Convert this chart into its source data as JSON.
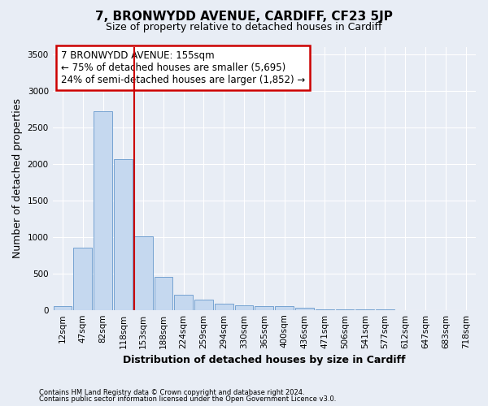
{
  "title": "7, BRONWYDD AVENUE, CARDIFF, CF23 5JP",
  "subtitle": "Size of property relative to detached houses in Cardiff",
  "xlabel": "Distribution of detached houses by size in Cardiff",
  "ylabel": "Number of detached properties",
  "footnote1": "Contains HM Land Registry data © Crown copyright and database right 2024.",
  "footnote2": "Contains public sector information licensed under the Open Government Licence v3.0.",
  "annotation_title": "7 BRONWYDD AVENUE: 155sqm",
  "annotation_line1": "← 75% of detached houses are smaller (5,695)",
  "annotation_line2": "24% of semi-detached houses are larger (1,852) →",
  "bar_color": "#c5d8ef",
  "bar_edge_color": "#6699cc",
  "marker_line_color": "#cc0000",
  "marker_bin_index": 4,
  "categories": [
    "12sqm",
    "47sqm",
    "82sqm",
    "118sqm",
    "153sqm",
    "188sqm",
    "224sqm",
    "259sqm",
    "294sqm",
    "330sqm",
    "365sqm",
    "400sqm",
    "436sqm",
    "471sqm",
    "506sqm",
    "541sqm",
    "577sqm",
    "612sqm",
    "647sqm",
    "683sqm",
    "718sqm"
  ],
  "values": [
    55,
    850,
    2720,
    2060,
    1010,
    455,
    205,
    145,
    80,
    60,
    55,
    55,
    35,
    10,
    4,
    4,
    3,
    2,
    2,
    2,
    2
  ],
  "ylim": [
    0,
    3600
  ],
  "yticks": [
    0,
    500,
    1000,
    1500,
    2000,
    2500,
    3000,
    3500
  ],
  "background_color": "#e8edf5",
  "plot_bg_color": "#e8edf5",
  "grid_color": "#ffffff",
  "title_fontsize": 11,
  "subtitle_fontsize": 9,
  "axis_label_fontsize": 9,
  "tick_fontsize": 7.5,
  "annotation_box_color": "#ffffff",
  "annotation_box_edge": "#cc0000",
  "annotation_fontsize": 8.5
}
